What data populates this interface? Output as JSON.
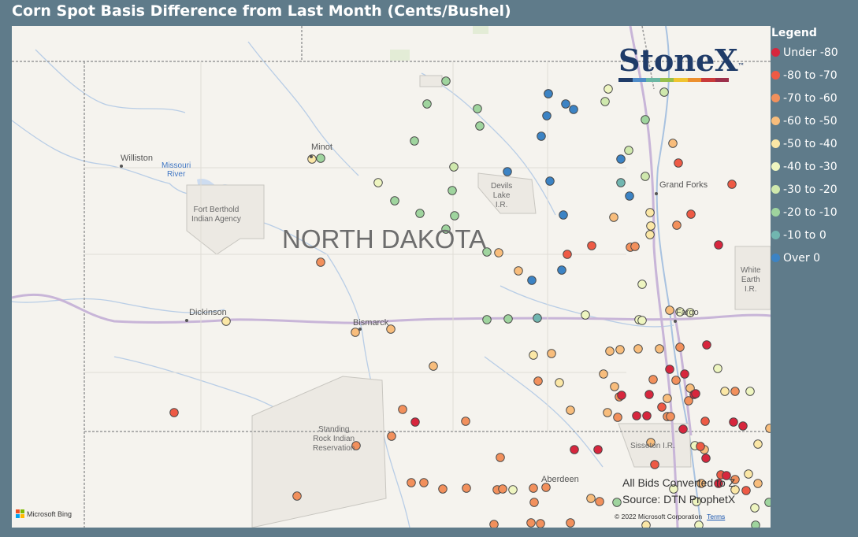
{
  "title": "Corn Spot Basis Difference from Last Month (Cents/Bushel)",
  "legend": {
    "title": "Legend",
    "items": [
      {
        "label": "Under -80",
        "color": "#d7263d"
      },
      {
        "label": "-80 to -70",
        "color": "#ee5a45"
      },
      {
        "label": "-70 to -60",
        "color": "#f2905c"
      },
      {
        "label": "-60 to -50",
        "color": "#f8bd7c"
      },
      {
        "label": "-50 to -40",
        "color": "#fbe7a6"
      },
      {
        "label": "-40 to -30",
        "color": "#eef5c0"
      },
      {
        "label": "-30 to -20",
        "color": "#cfe8ad"
      },
      {
        "label": "-20 to -10",
        "color": "#9fd49e"
      },
      {
        "label": "-10 to 0",
        "color": "#71b6b0"
      },
      {
        "label": "Over 0",
        "color": "#3c83c4"
      }
    ]
  },
  "logo": {
    "text": "StoneX",
    "tm": "™",
    "bar_colors": [
      "#1f3b68",
      "#4f8cc9",
      "#6bb7a4",
      "#96bf4c",
      "#f0c42f",
      "#ec8f2e",
      "#c93a3a",
      "#9c2f4b"
    ]
  },
  "map": {
    "state_label": "NORTH DAKOTA",
    "cities": [
      "Williston",
      "Minot",
      "Grand Forks",
      "Dickinson",
      "Bismarck",
      "Fargo",
      "Aberdeen"
    ],
    "regions": {
      "fort_berthold": "Fort Berthold\nIndian Agency",
      "devils_lake": "Devils\nLake\nI.R.",
      "standing_rock": "Standing\nRock Indian\nReservation",
      "sisseton": "Sisseton I.R.",
      "white_earth": "White\nEarth\nI.R."
    },
    "water": {
      "missouri_river": "Missouri\nRiver"
    },
    "source_line1": "All Bids Converted to Z",
    "source_line2": "Source: DTN ProphetX",
    "copyright": "© 2022 Microsoft Corporation",
    "terms": "Terms",
    "bing": "Microsoft Bing"
  }
}
